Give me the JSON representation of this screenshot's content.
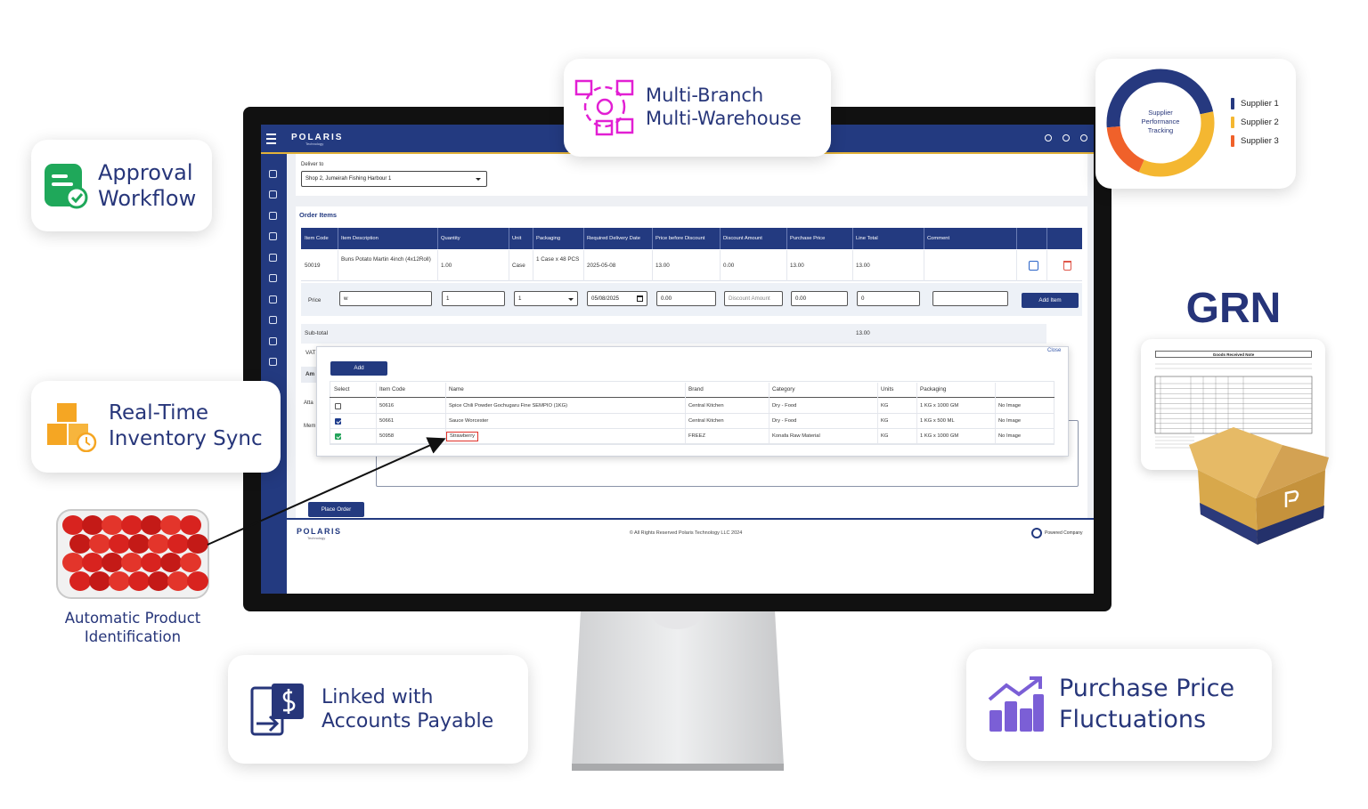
{
  "features": {
    "multi_branch": [
      "Multi-Branch",
      "Multi-Warehouse"
    ],
    "approval": [
      "Approval",
      "Workflow"
    ],
    "inventory": [
      "Real-Time",
      "Inventory Sync"
    ],
    "identification": [
      "Automatic Product",
      "Identification"
    ],
    "payables": [
      "Linked with",
      "Accounts Payable"
    ],
    "price": [
      "Purchase Price",
      "Fluctuations"
    ]
  },
  "supplier_chart": {
    "type": "donut",
    "title": "Supplier Performance Tracking",
    "series": [
      {
        "name": "Supplier 1",
        "color": "#26397f",
        "value": 48
      },
      {
        "name": "Supplier 2",
        "color": "#f4b731",
        "value": 35
      },
      {
        "name": "Supplier 3",
        "color": "#f0612a",
        "value": 17
      }
    ]
  },
  "grn": {
    "title": "GRN",
    "document_title": "Goods Received Note"
  },
  "app": {
    "brand": "POLARIS",
    "brand_sub": "Technology",
    "deliver_label": "Deliver to",
    "deliver_value": "Shop 2, Jumeirah Fishing Harbour 1",
    "order_items_title": "Order Items",
    "columns": [
      "Item Code",
      "Item Description",
      "Quantity",
      "Unit",
      "Packaging",
      "Required Delivery Date",
      "Price before Discount",
      "Discount Amount",
      "Purchase Price",
      "Line Total",
      "Comment"
    ],
    "rows": [
      [
        "50019",
        "Buns Potato Martin 4inch (4x12Roll)",
        "1.00",
        "Case",
        "1 Case x 48 PCS",
        "2025-05-08",
        "13.00",
        "0.00",
        "13.00",
        "13.00"
      ]
    ],
    "entry": {
      "label": "Price",
      "item": "w",
      "quantity": "1",
      "unit": "1",
      "date": "05/08/2025",
      "price": "0.00",
      "discount_placeholder": "Discount Amount",
      "purchase_price": "0.00",
      "line_total": "0",
      "button": "Add Item"
    },
    "subtotal_label": "Sub-total",
    "subtotal": "13.00",
    "vat_label": "VAT",
    "amount_label": "Am",
    "attach_label": "Atta",
    "memo_label": "Mem",
    "place_order": "Place Order",
    "popup": {
      "close": "Close",
      "add": "Add",
      "columns": [
        "Select",
        "Item Code",
        "Name",
        "Brand",
        "Category",
        "Units",
        "Packaging"
      ],
      "rows": [
        {
          "checked": false,
          "check_color": "#ffffff",
          "cells": [
            "50616",
            "Spice Chili Powder Gochugaru Fine SEMPIO (1KG)",
            "Central Kitchen",
            "Dry - Food",
            "KG",
            "1 KG x 1000 GM",
            "No Image"
          ]
        },
        {
          "checked": true,
          "check_color": "#1d3b8c",
          "cells": [
            "50661",
            "Sauce Worcester",
            "Central Kitchen",
            "Dry - Food",
            "KG",
            "1 KG x 500 ML",
            "No Image"
          ]
        },
        {
          "checked": true,
          "check_color": "#22a35a",
          "cells": [
            "50958",
            "Strawberry",
            "FREEZ",
            "Konafa Raw Material",
            "KG",
            "1 KG x 1000 GM",
            "No Image"
          ]
        }
      ]
    },
    "footer": {
      "brand": "POLARIS",
      "brand_sub": "Technology",
      "copyright": "© All Rights Reserved Polaris Technology LLC 2024",
      "powered": "Powered Company"
    }
  }
}
